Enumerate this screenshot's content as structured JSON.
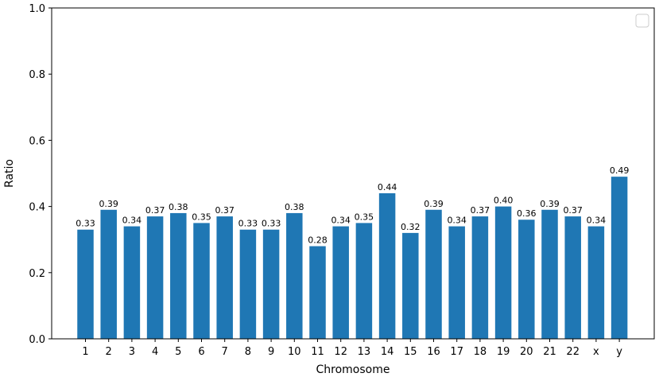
{
  "chart_data": {
    "type": "bar",
    "title": "",
    "xlabel": "Chromosome",
    "ylabel": "Ratio",
    "ylim": [
      0,
      1.0
    ],
    "yticks": [
      0.0,
      0.2,
      0.4,
      0.6,
      0.8,
      1.0
    ],
    "ytick_labels": [
      "0.0",
      "0.2",
      "0.4",
      "0.6",
      "0.8",
      "1.0"
    ],
    "categories": [
      "1",
      "2",
      "3",
      "4",
      "5",
      "6",
      "7",
      "8",
      "9",
      "10",
      "11",
      "12",
      "13",
      "14",
      "15",
      "16",
      "17",
      "18",
      "19",
      "20",
      "21",
      "22",
      "x",
      "y"
    ],
    "values": [
      0.33,
      0.39,
      0.34,
      0.37,
      0.38,
      0.35,
      0.37,
      0.33,
      0.33,
      0.38,
      0.28,
      0.34,
      0.35,
      0.44,
      0.32,
      0.39,
      0.34,
      0.37,
      0.4,
      0.36,
      0.39,
      0.37,
      0.34,
      0.49
    ],
    "data_labels": [
      "0.33",
      "0.39",
      "0.34",
      "0.37",
      "0.38",
      "0.35",
      "0.37",
      "0.33",
      "0.33",
      "0.38",
      "0.28",
      "0.34",
      "0.35",
      "0.44",
      "0.32",
      "0.39",
      "0.34",
      "0.37",
      "0.40",
      "0.36",
      "0.39",
      "0.37",
      "0.34",
      "0.49"
    ],
    "bar_color": "#1f77b4",
    "grid": false,
    "legend": {
      "placement": "top-right",
      "entries": []
    }
  }
}
